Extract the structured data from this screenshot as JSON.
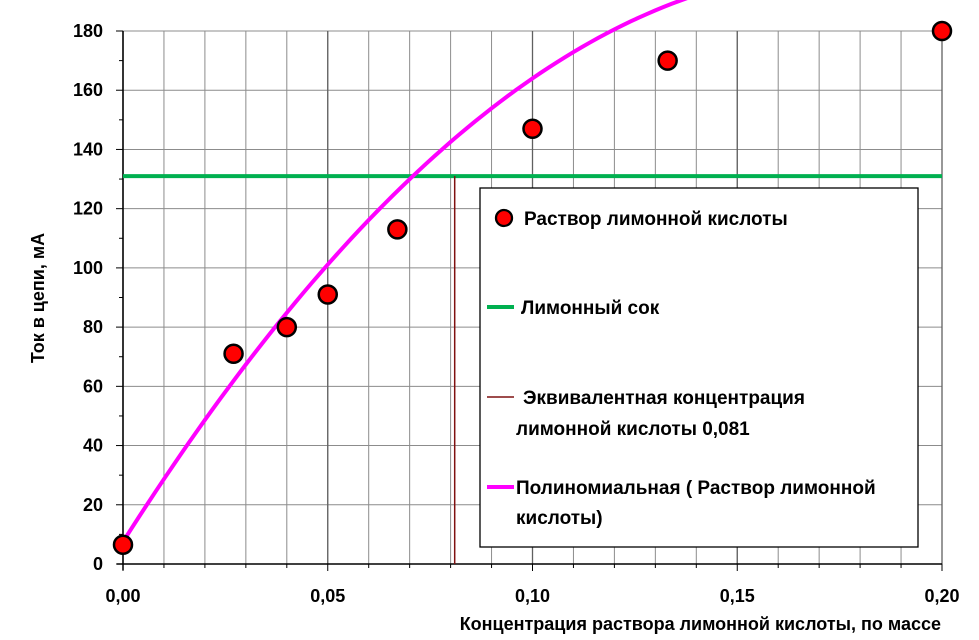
{
  "chart_data": {
    "type": "scatter",
    "xlabel": "Концентрация раствора лимонной кислоты, по массе",
    "ylabel": "Ток в цепи, мА",
    "xlim": [
      0,
      0.2
    ],
    "ylim": [
      0,
      180
    ],
    "x_ticks": [
      "0,00",
      "0,05",
      "0,10",
      "0,15",
      "0,20"
    ],
    "y_ticks": [
      "0",
      "20",
      "40",
      "60",
      "80",
      "100",
      "120",
      "140",
      "160",
      "180"
    ],
    "grid": true,
    "legend_position": "right",
    "series": [
      {
        "name": "Раствор лимонной кислоты",
        "kind": "scatter",
        "color": "#ff0000",
        "points": [
          {
            "x": 0.0,
            "y": 6.5
          },
          {
            "x": 0.027,
            "y": 71
          },
          {
            "x": 0.04,
            "y": 80
          },
          {
            "x": 0.05,
            "y": 91
          },
          {
            "x": 0.067,
            "y": 113
          },
          {
            "x": 0.1,
            "y": 147
          },
          {
            "x": 0.133,
            "y": 170
          },
          {
            "x": 0.2,
            "y": 180
          }
        ]
      },
      {
        "name": "Лимонный сок",
        "kind": "hline",
        "color": "#00b050",
        "y": 131
      },
      {
        "name_lines": [
          "Эквивалентная концентрация",
          "лимонной кислоты 0,081"
        ],
        "kind": "vline",
        "color": "#7f1010",
        "x": 0.081
      },
      {
        "name_lines": [
          "Полиномиальная ( Раствор лимонной",
          "кислоты)"
        ],
        "kind": "trendline",
        "color": "#ff00ff",
        "coefficients": [
          7.5,
          2180,
          -6150
        ]
      }
    ]
  }
}
